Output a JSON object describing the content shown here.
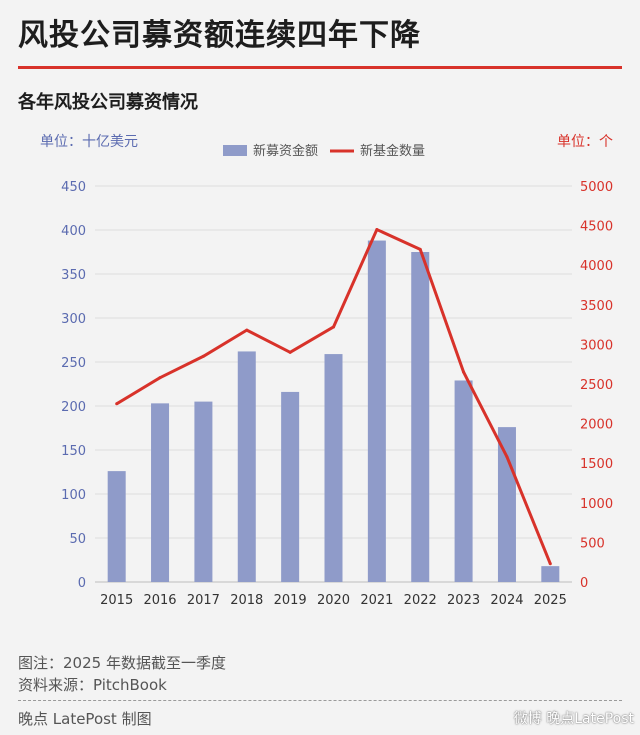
{
  "headline": "风投公司募资额连续四年下降",
  "chart_data": {
    "type": "bar+line",
    "title": "各年风投公司募资情况",
    "left_unit": "单位：十亿美元",
    "right_unit": "单位：个",
    "categories": [
      "2015",
      "2016",
      "2017",
      "2018",
      "2019",
      "2020",
      "2021",
      "2022",
      "2023",
      "2024",
      "2025"
    ],
    "series": [
      {
        "name": "新募资金额",
        "kind": "bar",
        "axis": "left",
        "color": "#8f9bc9",
        "values": [
          126,
          203,
          205,
          262,
          216,
          259,
          388,
          375,
          229,
          176,
          18
        ]
      },
      {
        "name": "新基金数量",
        "kind": "line",
        "axis": "right",
        "color": "#d8322a",
        "values": [
          2250,
          2580,
          2850,
          3180,
          2900,
          3220,
          4450,
          4200,
          2650,
          1580,
          230
        ]
      }
    ],
    "left_axis": {
      "range": [
        0,
        450
      ],
      "ticks": [
        "0",
        "50",
        "100",
        "150",
        "200",
        "250",
        "300",
        "350",
        "400",
        "450"
      ],
      "color": "#5b6bb0"
    },
    "right_axis": {
      "range": [
        0,
        5000
      ],
      "ticks": [
        "0",
        "500",
        "1000",
        "1500",
        "2000",
        "2500",
        "3000",
        "3500",
        "4000",
        "4500",
        "5000"
      ],
      "color": "#d8322a"
    },
    "grid": true,
    "legend_position": "top-center"
  },
  "notes": {
    "note": "图注：2025 年数据截至一季度",
    "source": "资料来源：PitchBook"
  },
  "credit": "晚点 LatePost 制图",
  "watermark": "微博 晚点LatePost"
}
